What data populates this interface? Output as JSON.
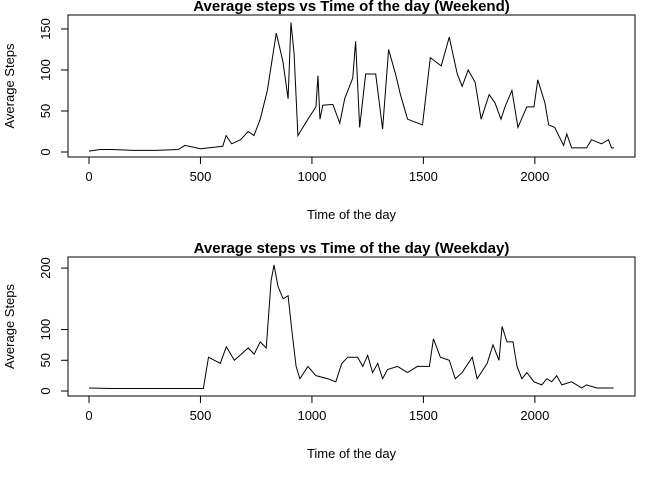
{
  "chart_data": [
    {
      "type": "line",
      "title": "Average steps vs Time of the day (Weekend)",
      "x_label": "Time of the day",
      "y_label": "Average Steps",
      "x": [
        0,
        50,
        100,
        200,
        300,
        400,
        430,
        500,
        600,
        615,
        640,
        680,
        714,
        740,
        768,
        800,
        840,
        870,
        893,
        906,
        920,
        937,
        982,
        1018,
        1027,
        1036,
        1049,
        1094,
        1125,
        1147,
        1183,
        1196,
        1214,
        1241,
        1286,
        1317,
        1344,
        1375,
        1397,
        1429,
        1496,
        1531,
        1580,
        1616,
        1652,
        1674,
        1701,
        1732,
        1759,
        1795,
        1821,
        1848,
        1866,
        1897,
        1924,
        1964,
        1996,
        2013,
        2045,
        2062,
        2089,
        2107,
        2129,
        2143,
        2165,
        2232,
        2254,
        2299,
        2330,
        2344,
        2355
      ],
      "series": [
        {
          "name": "Weekend",
          "color": "#000000",
          "values": [
            1,
            3,
            3,
            2,
            2,
            3,
            8,
            4,
            7,
            20,
            10,
            15,
            25,
            20,
            40,
            75,
            145,
            110,
            65,
            158,
            120,
            20,
            40,
            55,
            93,
            40,
            57,
            58,
            35,
            65,
            90,
            135,
            30,
            95,
            95,
            28,
            125,
            95,
            70,
            40,
            33,
            115,
            105,
            140,
            95,
            80,
            100,
            85,
            40,
            70,
            60,
            40,
            55,
            75,
            30,
            55,
            55,
            88,
            60,
            33,
            30,
            20,
            8,
            22,
            5,
            5,
            15,
            10,
            15,
            5,
            5
          ]
        }
      ],
      "xlim": [
        -94.2,
        2449.2
      ],
      "ylim": [
        -6.1,
        167
      ],
      "xticks": [
        0,
        500,
        1000,
        1500,
        2000
      ],
      "yticks": [
        0,
        50,
        100,
        150
      ]
    },
    {
      "type": "line",
      "title": "Average steps vs Time of the day (Weekday)",
      "x_label": "Time of the day",
      "y_label": "Average Steps",
      "x": [
        0,
        100,
        200,
        300,
        400,
        513,
        536,
        589,
        616,
        652,
        683,
        714,
        741,
        768,
        795,
        817,
        830,
        848,
        871,
        893,
        911,
        929,
        946,
        982,
        1018,
        1071,
        1107,
        1134,
        1161,
        1205,
        1228,
        1250,
        1272,
        1295,
        1317,
        1339,
        1384,
        1429,
        1473,
        1527,
        1545,
        1576,
        1616,
        1643,
        1674,
        1719,
        1741,
        1786,
        1812,
        1839,
        1853,
        1875,
        1902,
        1920,
        1942,
        1964,
        1996,
        2031,
        2054,
        2076,
        2098,
        2121,
        2165,
        2210,
        2232,
        2277,
        2321,
        2353
      ],
      "series": [
        {
          "name": "Weekday",
          "color": "#000000",
          "values": [
            5,
            4,
            4,
            4,
            4,
            4,
            55,
            45,
            72,
            50,
            60,
            70,
            60,
            80,
            70,
            180,
            205,
            170,
            150,
            155,
            95,
            40,
            20,
            40,
            25,
            20,
            15,
            45,
            55,
            55,
            40,
            58,
            30,
            45,
            20,
            35,
            40,
            30,
            40,
            40,
            85,
            55,
            50,
            20,
            30,
            55,
            20,
            45,
            75,
            50,
            105,
            80,
            80,
            40,
            20,
            30,
            15,
            10,
            20,
            15,
            25,
            10,
            15,
            5,
            10,
            5,
            5,
            5
          ]
        }
      ],
      "xlim": [
        -94.2,
        2449.2
      ],
      "ylim": [
        -8.1,
        218
      ],
      "xticks": [
        0,
        500,
        1000,
        1500,
        2000
      ],
      "yticks": [
        0,
        50,
        100,
        200
      ]
    }
  ]
}
